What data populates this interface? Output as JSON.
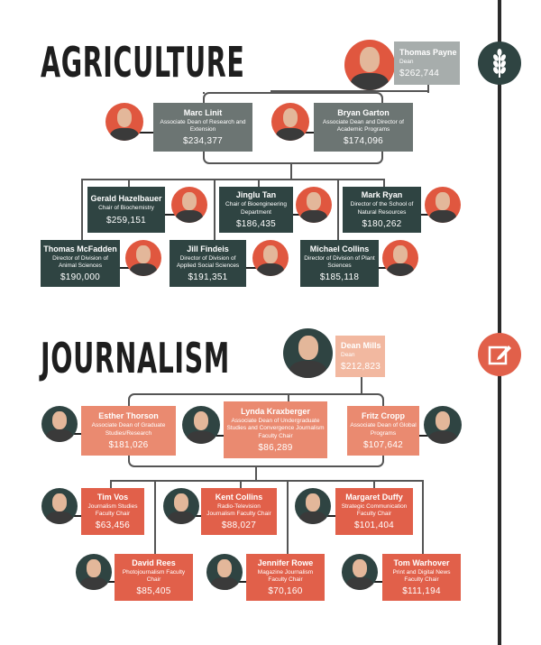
{
  "colors": {
    "agri_dean": "#a7adac",
    "agri_tier2": "#6c7573",
    "agri_tier3": "#2f4442",
    "journ_dean": "#f2b8a0",
    "journ_tier2": "#ea8a70",
    "journ_tier3": "#e1604a",
    "agri_photo_bg": "#e0573f",
    "journ_photo_bg": "#2f4442"
  },
  "sections": [
    {
      "title": "AGRICULTURE",
      "icon": "wheat-icon",
      "people": [
        {
          "name": "Thomas Payne",
          "role": "Dean",
          "salary": "$262,744",
          "tier": "dean"
        },
        {
          "name": "Marc Linit",
          "role": "Associate Dean of Research and Extension",
          "salary": "$234,377",
          "tier": "tier2"
        },
        {
          "name": "Bryan Garton",
          "role": "Associate Dean and Director of Academic Programs",
          "salary": "$174,096",
          "tier": "tier2"
        },
        {
          "name": "Gerald Hazelbauer",
          "role": "Chair of Biochemistry",
          "salary": "$259,151",
          "tier": "tier3"
        },
        {
          "name": "Jinglu Tan",
          "role": "Chair of Bioengineering Department",
          "salary": "$186,435",
          "tier": "tier3"
        },
        {
          "name": "Mark Ryan",
          "role": "Director of the School of Natural Resources",
          "salary": "$180,262",
          "tier": "tier3"
        },
        {
          "name": "Thomas McFadden",
          "role": "Director of Division of Animal Sciences",
          "salary": "$190,000",
          "tier": "tier3"
        },
        {
          "name": "Jill Findeis",
          "role": "Director of Division of Applied Social Sciences",
          "salary": "$191,351",
          "tier": "tier3"
        },
        {
          "name": "Michael Collins",
          "role": "Director of Division of Plant Sciences",
          "salary": "$185,118",
          "tier": "tier3"
        }
      ]
    },
    {
      "title": "JOURNALISM",
      "icon": "edit-icon",
      "people": [
        {
          "name": "Dean Mills",
          "role": "Dean",
          "salary": "$212,823",
          "tier": "dean"
        },
        {
          "name": "Esther Thorson",
          "role": "Associate Dean of Graduate Studies/Research",
          "salary": "$181,026",
          "tier": "tier2"
        },
        {
          "name": "Lynda Kraxberger",
          "role": "Associate Dean of Undergraduate Studies and Convergence Journalism Faculty Chair",
          "salary": "$86,289",
          "tier": "tier2"
        },
        {
          "name": "Fritz Cropp",
          "role": "Associate Dean of Global Programs",
          "salary": "$107,642",
          "tier": "tier2"
        },
        {
          "name": "Tim Vos",
          "role": "Journalism Studies Faculty Chair",
          "salary": "$63,456",
          "tier": "tier3"
        },
        {
          "name": "Kent Collins",
          "role": "Radio-Television Journalism Faculty Chair",
          "salary": "$88,027",
          "tier": "tier3"
        },
        {
          "name": "Margaret Duffy",
          "role": "Strategic Communication Faculty Chair",
          "salary": "$101,404",
          "tier": "tier3"
        },
        {
          "name": "David Rees",
          "role": "Photojournalism Faculty Chair",
          "salary": "$85,405",
          "tier": "tier3"
        },
        {
          "name": "Jennifer Rowe",
          "role": "Magazine Journalism Faculty Chair",
          "salary": "$70,160",
          "tier": "tier3"
        },
        {
          "name": "Tom Warhover",
          "role": "Print and Digital News Faculty Chair",
          "salary": "$111,194",
          "tier": "tier3"
        }
      ]
    }
  ]
}
